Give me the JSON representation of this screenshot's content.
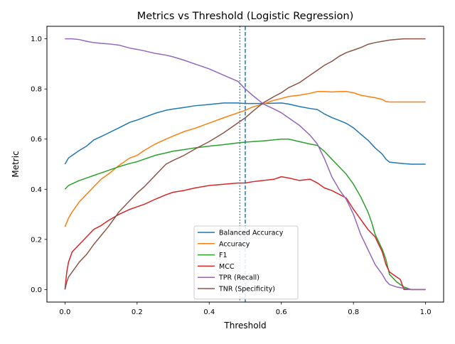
{
  "chart_data": {
    "type": "line",
    "title": "Metrics vs Threshold (Logistic Regression)",
    "xlabel": "Threshold",
    "ylabel": "Metric",
    "xlim": [
      -0.05,
      1.05
    ],
    "ylim": [
      -0.05,
      1.05
    ],
    "xticks": [
      0.0,
      0.2,
      0.4,
      0.6,
      0.8,
      1.0
    ],
    "xtick_labels": [
      "0.0",
      "0.2",
      "0.4",
      "0.6",
      "0.8",
      "1.0"
    ],
    "yticks": [
      0.0,
      0.2,
      0.4,
      0.6,
      0.8,
      1.0
    ],
    "ytick_labels": [
      "0.0",
      "0.2",
      "0.4",
      "0.6",
      "0.8",
      "1.0"
    ],
    "grid": false,
    "legend_position": "lower-center",
    "vertical_lines": [
      {
        "x": 0.485,
        "style": "dotted",
        "color": "#1f77b4"
      },
      {
        "x": 0.5,
        "style": "dashed",
        "color": "#1f77b4"
      }
    ],
    "series": [
      {
        "name": "Balanced Accuracy",
        "color": "#1f77b4",
        "x": [
          0.0,
          0.01,
          0.02,
          0.04,
          0.06,
          0.08,
          0.1,
          0.12,
          0.15,
          0.18,
          0.2,
          0.22,
          0.25,
          0.28,
          0.3,
          0.33,
          0.36,
          0.4,
          0.44,
          0.48,
          0.5,
          0.52,
          0.55,
          0.58,
          0.6,
          0.62,
          0.65,
          0.68,
          0.7,
          0.72,
          0.74,
          0.76,
          0.78,
          0.8,
          0.82,
          0.84,
          0.86,
          0.88,
          0.89,
          0.9,
          0.92,
          0.94,
          0.96,
          1.0
        ],
        "y": [
          0.5,
          0.525,
          0.535,
          0.555,
          0.572,
          0.597,
          0.61,
          0.624,
          0.645,
          0.667,
          0.676,
          0.687,
          0.703,
          0.715,
          0.72,
          0.726,
          0.733,
          0.738,
          0.744,
          0.744,
          0.742,
          0.742,
          0.742,
          0.743,
          0.744,
          0.74,
          0.73,
          0.722,
          0.718,
          0.7,
          0.686,
          0.675,
          0.663,
          0.645,
          0.62,
          0.596,
          0.565,
          0.54,
          0.52,
          0.508,
          0.505,
          0.502,
          0.5,
          0.5
        ]
      },
      {
        "name": "Accuracy",
        "color": "#ff7f0e",
        "x": [
          0.0,
          0.01,
          0.02,
          0.04,
          0.06,
          0.08,
          0.1,
          0.12,
          0.15,
          0.18,
          0.2,
          0.22,
          0.25,
          0.28,
          0.3,
          0.33,
          0.36,
          0.4,
          0.44,
          0.48,
          0.5,
          0.52,
          0.55,
          0.58,
          0.6,
          0.62,
          0.65,
          0.68,
          0.7,
          0.72,
          0.74,
          0.76,
          0.78,
          0.8,
          0.82,
          0.84,
          0.86,
          0.88,
          0.89,
          0.9,
          0.92,
          0.94,
          0.96,
          1.0
        ],
        "y": [
          0.25,
          0.285,
          0.31,
          0.35,
          0.38,
          0.41,
          0.44,
          0.46,
          0.495,
          0.525,
          0.535,
          0.555,
          0.58,
          0.6,
          0.612,
          0.63,
          0.643,
          0.664,
          0.685,
          0.705,
          0.715,
          0.728,
          0.74,
          0.755,
          0.762,
          0.77,
          0.775,
          0.783,
          0.79,
          0.79,
          0.788,
          0.79,
          0.79,
          0.785,
          0.775,
          0.77,
          0.765,
          0.758,
          0.75,
          0.748,
          0.748,
          0.748,
          0.748,
          0.748
        ]
      },
      {
        "name": "F1",
        "color": "#2ca02c",
        "x": [
          0.0,
          0.01,
          0.02,
          0.04,
          0.06,
          0.08,
          0.1,
          0.12,
          0.15,
          0.18,
          0.2,
          0.22,
          0.25,
          0.28,
          0.3,
          0.33,
          0.36,
          0.4,
          0.44,
          0.48,
          0.5,
          0.52,
          0.55,
          0.58,
          0.6,
          0.62,
          0.65,
          0.68,
          0.7,
          0.72,
          0.74,
          0.76,
          0.78,
          0.8,
          0.82,
          0.84,
          0.85,
          0.86,
          0.87,
          0.88,
          0.89,
          0.9,
          0.92,
          0.94,
          0.96,
          1.0
        ],
        "y": [
          0.4,
          0.415,
          0.422,
          0.435,
          0.445,
          0.455,
          0.465,
          0.475,
          0.49,
          0.503,
          0.51,
          0.52,
          0.535,
          0.545,
          0.552,
          0.558,
          0.565,
          0.572,
          0.578,
          0.585,
          0.588,
          0.59,
          0.593,
          0.597,
          0.6,
          0.6,
          0.59,
          0.58,
          0.575,
          0.55,
          0.52,
          0.49,
          0.46,
          0.42,
          0.37,
          0.31,
          0.27,
          0.22,
          0.19,
          0.16,
          0.12,
          0.06,
          0.03,
          0.01,
          0.0,
          0.0
        ]
      },
      {
        "name": "MCC",
        "color": "#d62728",
        "x": [
          0.0,
          0.005,
          0.01,
          0.02,
          0.04,
          0.06,
          0.08,
          0.1,
          0.12,
          0.15,
          0.18,
          0.2,
          0.22,
          0.25,
          0.28,
          0.3,
          0.33,
          0.36,
          0.4,
          0.44,
          0.48,
          0.5,
          0.52,
          0.55,
          0.58,
          0.6,
          0.62,
          0.65,
          0.68,
          0.7,
          0.72,
          0.74,
          0.76,
          0.78,
          0.8,
          0.82,
          0.84,
          0.86,
          0.87,
          0.88,
          0.89,
          0.9,
          0.91,
          0.92,
          0.93,
          0.94,
          0.95,
          1.0
        ],
        "y": [
          0.0,
          0.07,
          0.11,
          0.15,
          0.18,
          0.21,
          0.24,
          0.255,
          0.275,
          0.3,
          0.32,
          0.33,
          0.34,
          0.36,
          0.378,
          0.388,
          0.395,
          0.405,
          0.415,
          0.42,
          0.425,
          0.425,
          0.43,
          0.435,
          0.44,
          0.45,
          0.445,
          0.435,
          0.44,
          0.425,
          0.405,
          0.395,
          0.38,
          0.365,
          0.32,
          0.28,
          0.24,
          0.21,
          0.18,
          0.15,
          0.1,
          0.07,
          0.06,
          0.05,
          0.04,
          0.0,
          0.0,
          0.0
        ]
      },
      {
        "name": "TPR (Recall)",
        "color": "#9467bd",
        "x": [
          0.0,
          0.02,
          0.04,
          0.06,
          0.08,
          0.1,
          0.12,
          0.15,
          0.18,
          0.2,
          0.22,
          0.25,
          0.28,
          0.3,
          0.33,
          0.36,
          0.4,
          0.44,
          0.48,
          0.5,
          0.52,
          0.55,
          0.58,
          0.6,
          0.62,
          0.65,
          0.68,
          0.7,
          0.72,
          0.74,
          0.76,
          0.78,
          0.8,
          0.82,
          0.84,
          0.86,
          0.88,
          0.89,
          0.9,
          0.92,
          0.94,
          0.96,
          1.0
        ],
        "y": [
          1.0,
          1.0,
          0.997,
          0.99,
          0.985,
          0.982,
          0.98,
          0.975,
          0.963,
          0.958,
          0.952,
          0.942,
          0.935,
          0.928,
          0.915,
          0.9,
          0.88,
          0.855,
          0.83,
          0.8,
          0.775,
          0.74,
          0.72,
          0.705,
          0.685,
          0.655,
          0.615,
          0.58,
          0.52,
          0.45,
          0.4,
          0.36,
          0.3,
          0.22,
          0.16,
          0.1,
          0.06,
          0.035,
          0.02,
          0.01,
          0.005,
          0.0,
          0.0
        ]
      },
      {
        "name": "TNR (Specificity)",
        "color": "#8c564b",
        "x": [
          0.0,
          0.005,
          0.01,
          0.02,
          0.04,
          0.06,
          0.08,
          0.1,
          0.12,
          0.15,
          0.18,
          0.2,
          0.22,
          0.25,
          0.28,
          0.3,
          0.33,
          0.36,
          0.4,
          0.44,
          0.48,
          0.5,
          0.52,
          0.55,
          0.58,
          0.6,
          0.62,
          0.65,
          0.68,
          0.7,
          0.72,
          0.74,
          0.76,
          0.78,
          0.8,
          0.82,
          0.84,
          0.86,
          0.88,
          0.9,
          0.92,
          0.94,
          1.0
        ],
        "y": [
          0.0,
          0.03,
          0.05,
          0.07,
          0.11,
          0.14,
          0.18,
          0.215,
          0.25,
          0.31,
          0.355,
          0.385,
          0.41,
          0.455,
          0.5,
          0.515,
          0.535,
          0.56,
          0.59,
          0.625,
          0.665,
          0.685,
          0.71,
          0.745,
          0.77,
          0.785,
          0.805,
          0.825,
          0.855,
          0.875,
          0.895,
          0.91,
          0.93,
          0.945,
          0.955,
          0.965,
          0.978,
          0.985,
          0.99,
          0.995,
          0.998,
          1.0,
          1.0
        ]
      }
    ]
  }
}
